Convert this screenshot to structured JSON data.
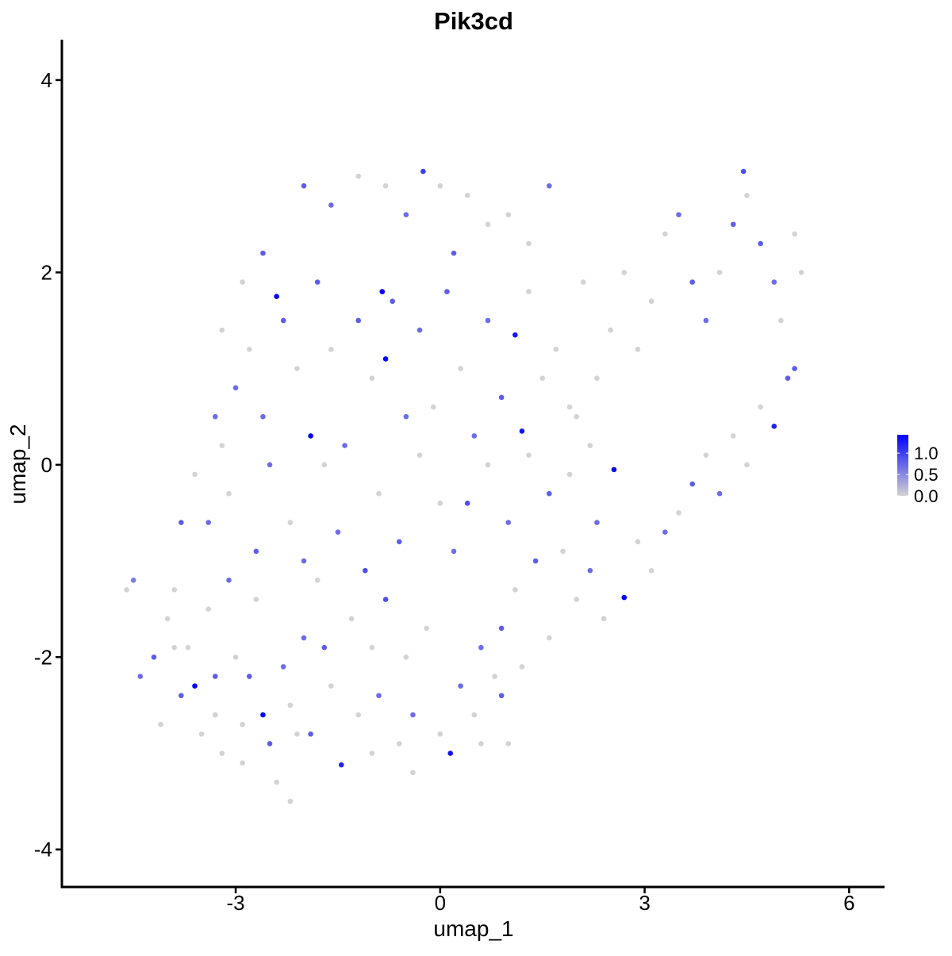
{
  "chart_data": {
    "type": "scatter",
    "title": "Pik3cd",
    "xlabel": "umap_1",
    "ylabel": "umap_2",
    "xlim": [
      -5.55,
      6.52
    ],
    "ylim": [
      -4.39,
      4.42
    ],
    "xticks": [
      -3,
      0,
      3,
      6
    ],
    "yticks": [
      -4,
      -2,
      0,
      2,
      4
    ],
    "color_low": "#d3d3d3",
    "color_high": "#0000ff",
    "colorbar": {
      "lim": [
        0,
        1.43
      ],
      "ticks": [
        {
          "value": 0,
          "label": "0.0"
        },
        {
          "value": 0.5,
          "label": "0.5"
        },
        {
          "value": 1,
          "label": "1.0"
        }
      ]
    },
    "x": [
      -4.6,
      -4.5,
      -4.4,
      -4.2,
      -4.1,
      -3.9,
      -3.8,
      -3.6,
      -3.5,
      -3.4,
      -3.3,
      -3.2,
      -3.1,
      -3.0,
      -2.9,
      -2.8,
      -2.7,
      -2.6,
      -2.5,
      -2.4,
      -2.3,
      -2.2,
      -2.1,
      -2.0,
      -1.9,
      -1.8,
      -1.6,
      -1.45,
      -1.3,
      -1.2,
      -1.0,
      -0.9,
      -0.8,
      -0.6,
      -0.5,
      -0.4,
      -0.2,
      0.0,
      0.15,
      0.3,
      0.5,
      0.6,
      0.8,
      0.9,
      1.0,
      1.1,
      1.2,
      1.4,
      1.6,
      1.8,
      2.0,
      2.2,
      2.4,
      2.7,
      2.9,
      3.1,
      3.3,
      3.5,
      3.7,
      3.9,
      4.1,
      4.3,
      4.5,
      4.7,
      4.9,
      5.1,
      5.2,
      5.0,
      5.3,
      5.2,
      4.9,
      4.7,
      4.5,
      4.45,
      4.3,
      4.1,
      3.9,
      3.7,
      3.5,
      3.3,
      3.1,
      2.9,
      2.7,
      2.5,
      2.3,
      2.1,
      1.9,
      1.7,
      1.5,
      1.3,
      1.1,
      1.2,
      0.9,
      0.7,
      0.5,
      0.3,
      0.1,
      -0.1,
      -0.3,
      -0.5,
      -0.7,
      -0.85,
      -0.8,
      -1.0,
      -1.2,
      -1.4,
      -1.6,
      -1.8,
      -1.9,
      -2.1,
      -2.3,
      -2.4,
      -2.6,
      -2.8,
      -3.0,
      -3.2,
      -3.4,
      -3.1,
      -2.7,
      -2.5,
      -2.2,
      -2.0,
      -1.7,
      -1.5,
      -1.1,
      -0.9,
      -0.6,
      -0.3,
      0.0,
      0.2,
      0.4,
      0.7,
      1.0,
      1.3,
      1.6,
      1.9,
      2.2,
      2.55,
      2.3,
      2.0,
      -2.0,
      -1.6,
      -1.2,
      -0.8,
      -0.5,
      -0.25,
      0.0,
      0.2,
      0.4,
      0.7,
      1.0,
      1.3,
      1.6,
      -2.6,
      -2.9,
      -3.2,
      -3.3,
      -3.6,
      -3.8,
      -3.9,
      -4.0,
      -3.7,
      -3.3,
      -2.9,
      -2.2,
      -1.7,
      -1.0,
      -0.4,
      0.6,
      0.9
    ],
    "y": [
      -1.3,
      -1.2,
      -2.2,
      -2.0,
      -2.7,
      -1.9,
      -2.4,
      -2.3,
      -2.8,
      -1.5,
      -2.6,
      -3.0,
      -1.2,
      -2.0,
      -3.1,
      -2.2,
      -1.4,
      -2.6,
      -2.9,
      -3.3,
      -2.1,
      -3.5,
      -2.8,
      -1.8,
      -2.8,
      -1.2,
      -2.3,
      -3.12,
      -1.6,
      -2.6,
      -1.9,
      -2.4,
      -1.4,
      -2.9,
      -2.0,
      -2.6,
      -1.7,
      -2.8,
      -3.0,
      -2.3,
      -2.6,
      -1.9,
      -2.2,
      -1.7,
      -2.9,
      -1.3,
      -2.1,
      -1.0,
      -1.8,
      -0.9,
      -1.4,
      -1.1,
      -1.6,
      -1.38,
      -0.8,
      -1.1,
      -0.7,
      -0.5,
      -0.2,
      0.1,
      -0.3,
      0.3,
      0.0,
      0.6,
      0.4,
      0.9,
      1.0,
      1.5,
      2.0,
      2.4,
      1.9,
      2.3,
      2.8,
      3.05,
      2.5,
      2.0,
      1.5,
      1.9,
      2.6,
      2.4,
      1.7,
      1.2,
      2.0,
      1.4,
      0.9,
      1.9,
      0.6,
      1.2,
      0.9,
      1.8,
      1.35,
      0.35,
      0.7,
      1.5,
      0.3,
      1.0,
      1.8,
      0.6,
      1.4,
      0.5,
      1.7,
      1.8,
      1.1,
      0.9,
      1.5,
      0.2,
      1.2,
      1.9,
      0.3,
      1.0,
      1.5,
      1.75,
      0.5,
      1.2,
      0.8,
      0.2,
      -0.6,
      -0.3,
      -0.9,
      0.0,
      -0.6,
      -1.0,
      0.0,
      -0.7,
      -1.1,
      -0.3,
      -0.8,
      0.1,
      -0.4,
      -0.9,
      -0.4,
      0.0,
      -0.6,
      0.1,
      -0.3,
      -0.1,
      0.2,
      -0.05,
      -0.6,
      0.5,
      2.9,
      2.7,
      3.0,
      2.9,
      2.6,
      3.05,
      2.9,
      2.2,
      2.8,
      2.5,
      2.6,
      2.3,
      2.9,
      2.2,
      1.9,
      1.4,
      0.5,
      -0.1,
      -0.6,
      -1.3,
      -1.6,
      -1.9,
      -2.2,
      -2.7,
      -2.5,
      -1.9,
      -3.0,
      -3.2,
      -2.9,
      -2.4
    ],
    "expression": [
      0,
      0.6,
      0.7,
      0.8,
      0,
      0,
      0.8,
      1.4,
      0,
      0,
      0,
      0,
      0.7,
      0,
      0,
      0.8,
      0,
      1.4,
      0.8,
      0,
      0.7,
      0,
      0,
      0.7,
      0.8,
      0,
      0,
      1.2,
      0,
      0,
      0,
      0.7,
      0.9,
      0,
      0,
      0.7,
      0,
      0,
      1.3,
      0.7,
      0,
      0.7,
      0,
      0.8,
      0,
      0,
      0,
      0.8,
      0,
      0,
      0,
      0.7,
      0,
      1.4,
      0,
      0,
      0.7,
      0,
      0.8,
      0,
      0.7,
      0,
      0,
      0,
      1.2,
      0.8,
      0.8,
      0,
      0,
      0,
      0.7,
      0.8,
      0,
      0.9,
      0.8,
      0,
      0.7,
      0.8,
      0.7,
      0,
      0,
      0,
      0,
      0,
      0,
      0,
      0,
      0,
      0,
      0,
      1.3,
      1.3,
      0.8,
      0.7,
      0.7,
      0,
      0.8,
      0,
      0.7,
      0.7,
      0.8,
      1.4,
      1.4,
      0,
      0.8,
      0.7,
      0,
      0.8,
      1.4,
      0,
      0.8,
      1.4,
      0.7,
      0,
      0.7,
      0,
      0.7,
      0,
      0.8,
      0.7,
      0,
      0.7,
      0,
      0.7,
      0.9,
      0,
      0.8,
      0,
      0,
      0.7,
      0.9,
      0,
      0.7,
      0,
      0.8,
      0,
      0,
      1.4,
      0.7,
      0,
      0.8,
      0.7,
      0,
      0,
      0.7,
      1.0,
      0,
      0.8,
      0,
      0,
      0,
      0,
      0.7,
      0.8,
      0,
      0,
      0.7,
      0,
      0.8,
      0,
      0,
      0,
      0.8,
      0,
      0,
      0.8,
      0,
      0,
      0,
      0.8
    ]
  }
}
